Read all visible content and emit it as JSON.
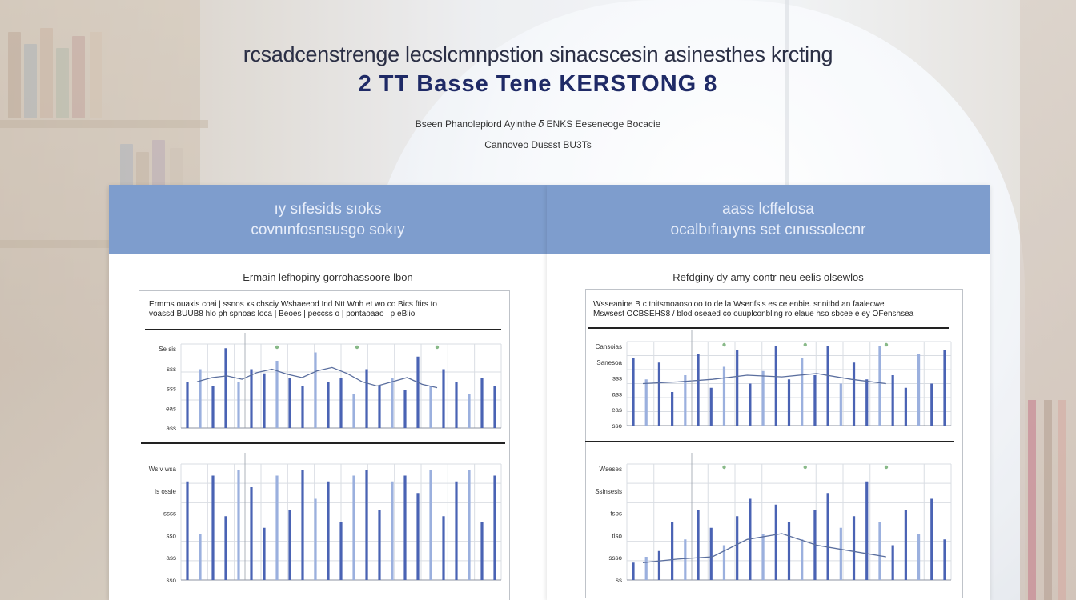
{
  "title": {
    "headline": "rcsadcenstrenge lecslcmnpstion sinacscesin asinesthes krcting",
    "subheadline": "2 TT Basse Tene KERSTONG 8",
    "byline_1": "Bseen Phanolepiord Ayinthe 𝛿 ENKS Eeseneoge Bocacie",
    "byline_2": "Cannoveo Dussst BU3Ts"
  },
  "colors": {
    "header": "#7e9dcd",
    "bar": "#4a63b4",
    "bar_light": "#9bb0de",
    "line": "#5a6e9e",
    "grid": "#d9dde3",
    "accent_green": "#6aa86a"
  },
  "panels": [
    {
      "heading": "ıy sıfesids sıoks",
      "subheading": "covnınfosnsusgo sokıy",
      "caption": "Ermain lefhopiny gorrohassoore lbon",
      "notes_1": "Ermms  ouaxis coai  |  ssnos  xs chsciy  Wshaeeod Ind Ntt Wnh et wo co  Bics ftirs to",
      "notes_2": "voassd BUUB8 hlo  ph spnoas loca  |  Beoes  |  peccss o  |  pontaoaao  |  p  eBlio"
    },
    {
      "heading": "aass lcffelosa",
      "subheading": "ocalbıfıaıyns set cınıssolecnr",
      "caption": "Refdginy dy amy  contr neu eelis olsewlos",
      "notes_1": "Wsseanine  B c tnitsmoaosoloo to de la Wsenfsis es ce enbie. snnitbd an faalecwe",
      "notes_2": "Mswsest OCBSEHS8  /  blod  oseaed co  ouuplconbling ro elaue  hso  sbcee e  ey  OFenshsea"
    }
  ],
  "chart_data": [
    {
      "type": "bar",
      "panel": "left-top",
      "y_tick_labels": [
        "Se sis",
        "sss",
        "sss",
        "eas",
        "ass"
      ],
      "series": [
        {
          "values": [
            0.55,
            0.7,
            0.5,
            0.95,
            0.55,
            0.7,
            0.65,
            0.8,
            0.6,
            0.5,
            0.9,
            0.55,
            0.6,
            0.4,
            0.7,
            0.5,
            0.6,
            0.45,
            0.85,
            0.5,
            0.7,
            0.55,
            0.4,
            0.6,
            0.5
          ]
        }
      ],
      "line": [
        0.55,
        0.6,
        0.62,
        0.58,
        0.66,
        0.7,
        0.64,
        0.6,
        0.68,
        0.72,
        0.65,
        0.55,
        0.5,
        0.55,
        0.6,
        0.52,
        0.48
      ]
    },
    {
      "type": "bar",
      "panel": "left-bottom",
      "y_tick_labels": [
        "Wsıv wsa",
        "Is ossie",
        "ssss",
        "sso",
        "ass",
        "sso"
      ],
      "series": [
        {
          "values": [
            0.85,
            0.4,
            0.9,
            0.55,
            0.95,
            0.8,
            0.45,
            0.9,
            0.6,
            0.95,
            0.7,
            0.85,
            0.5,
            0.9,
            0.95,
            0.6,
            0.85,
            0.9,
            0.75,
            0.95,
            0.55,
            0.85,
            0.95,
            0.5,
            0.9
          ]
        }
      ]
    },
    {
      "type": "bar",
      "panel": "right-top",
      "y_tick_labels": [
        "Cansoias",
        "Sanesoa",
        "sss",
        "ass",
        "eas",
        "sso"
      ],
      "series": [
        {
          "values": [
            0.8,
            0.55,
            0.75,
            0.4,
            0.6,
            0.85,
            0.45,
            0.7,
            0.9,
            0.5,
            0.65,
            0.95,
            0.55,
            0.8,
            0.6,
            0.95,
            0.5,
            0.75,
            0.55,
            0.95,
            0.6,
            0.45,
            0.85,
            0.5,
            0.9
          ]
        }
      ],
      "line": [
        0.5,
        0.52,
        0.55,
        0.6,
        0.58,
        0.62,
        0.55,
        0.5
      ]
    },
    {
      "type": "bar",
      "panel": "right-bottom",
      "y_tick_labels": [
        "Wseses",
        "Ssinsesis",
        "tsps",
        "tlso",
        "ssso",
        "ss"
      ],
      "series": [
        {
          "values": [
            0.15,
            0.2,
            0.25,
            0.5,
            0.35,
            0.6,
            0.45,
            0.3,
            0.55,
            0.7,
            0.4,
            0.65,
            0.5,
            0.35,
            0.6,
            0.75,
            0.45,
            0.55,
            0.85,
            0.5,
            0.3,
            0.6,
            0.4,
            0.7,
            0.35
          ]
        }
      ],
      "line": [
        0.15,
        0.18,
        0.2,
        0.35,
        0.4,
        0.3,
        0.25,
        0.2
      ]
    }
  ]
}
